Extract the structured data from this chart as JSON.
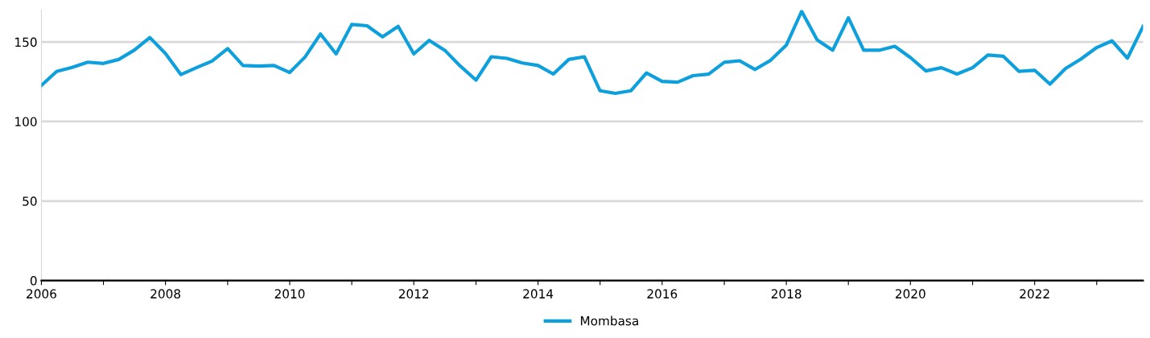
{
  "chart_data": {
    "type": "line",
    "x": [
      "2006-01",
      "2006-04",
      "2006-07",
      "2006-10",
      "2007-01",
      "2007-04",
      "2007-07",
      "2007-10",
      "2008-01",
      "2008-04",
      "2008-07",
      "2008-10",
      "2009-01",
      "2009-04",
      "2009-07",
      "2009-10",
      "2010-01",
      "2010-04",
      "2010-07",
      "2010-10",
      "2011-01",
      "2011-04",
      "2011-07",
      "2011-10",
      "2012-01",
      "2012-04",
      "2012-07",
      "2012-10",
      "2013-01",
      "2013-04",
      "2013-07",
      "2013-10",
      "2014-01",
      "2014-04",
      "2014-07",
      "2014-10",
      "2015-01",
      "2015-04",
      "2015-07",
      "2015-10",
      "2016-01",
      "2016-04",
      "2016-07",
      "2016-10",
      "2017-01",
      "2017-04",
      "2017-07",
      "2017-10",
      "2018-01",
      "2018-04",
      "2018-07",
      "2018-10",
      "2019-01",
      "2019-04",
      "2019-07",
      "2019-10",
      "2020-01",
      "2020-04",
      "2020-07",
      "2020-10",
      "2021-01",
      "2021-04",
      "2021-07",
      "2021-10",
      "2022-01",
      "2022-04",
      "2022-07",
      "2022-10",
      "2023-01",
      "2023-04",
      "2023-07",
      "2023-10"
    ],
    "series": [
      {
        "name": "Mombasa",
        "color": "#0ea0dc",
        "values": [
          122.7,
          131.5,
          134,
          137.3,
          136.5,
          139,
          144.8,
          152.8,
          142.7,
          129.5,
          133.8,
          138,
          145.8,
          135.2,
          134.8,
          135.2,
          130.8,
          140.5,
          155,
          142.5,
          161,
          160.2,
          153.2,
          159.8,
          142.5,
          151,
          144.8,
          134.8,
          126,
          140.7,
          139.7,
          136.8,
          135.2,
          129.8,
          139,
          140.7,
          119.3,
          117.7,
          119.3,
          130.5,
          125.2,
          124.7,
          128.8,
          129.8,
          137.2,
          138.2,
          132.7,
          138.5,
          148,
          169.3,
          151.3,
          144.8,
          165.2,
          144.8,
          144.8,
          147.3,
          140.2,
          131.8,
          133.8,
          129.8,
          133.8,
          141.8,
          141,
          131.5,
          132.2,
          123.5,
          133.2,
          139.3,
          146.5,
          150.7,
          139.8,
          159.8
        ]
      }
    ],
    "xlim": [
      "2006-01",
      "2023-10"
    ],
    "xticks": [
      {
        "value": "2006",
        "label": "2006"
      },
      {
        "value": "2007",
        "label": null
      },
      {
        "value": "2008",
        "label": "2008"
      },
      {
        "value": "2009",
        "label": null
      },
      {
        "value": "2010",
        "label": "2010"
      },
      {
        "value": "2011",
        "label": null
      },
      {
        "value": "2012",
        "label": "2012"
      },
      {
        "value": "2013",
        "label": null
      },
      {
        "value": "2014",
        "label": "2014"
      },
      {
        "value": "2015",
        "label": null
      },
      {
        "value": "2016",
        "label": "2016"
      },
      {
        "value": "2017",
        "label": null
      },
      {
        "value": "2018",
        "label": "2018"
      },
      {
        "value": "2019",
        "label": null
      },
      {
        "value": "2020",
        "label": "2020"
      },
      {
        "value": "2021",
        "label": null
      },
      {
        "value": "2022",
        "label": "2022"
      },
      {
        "value": "2023",
        "label": null
      }
    ],
    "ylim": [
      0,
      170
    ],
    "yticks": [
      0,
      50,
      100,
      150
    ],
    "grid": "y",
    "legend": "bottom",
    "line_style": "solid",
    "marker": "none"
  }
}
